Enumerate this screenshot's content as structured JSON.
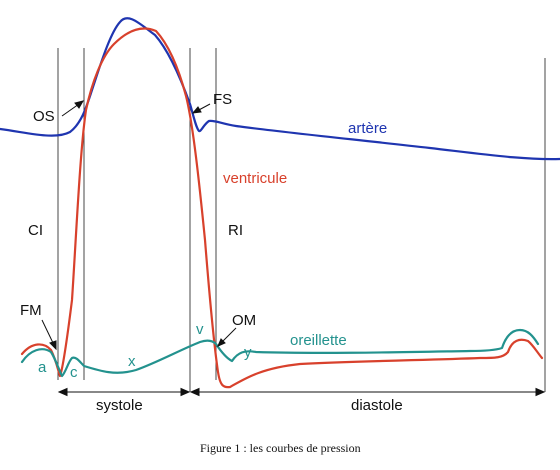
{
  "figure": {
    "caption": "Figure 1 : les courbes de pression",
    "colors": {
      "artery": "#1f35b0",
      "ventricle": "#d8412c",
      "atrium": "#23928e",
      "lines": "#222222"
    },
    "curves": {
      "artery": "artère",
      "ventricle": "ventricule",
      "atrium": "oreillette"
    },
    "events": {
      "aortic_opening": "OS",
      "aortic_closure": "FS",
      "mitral_closure": "FM",
      "mitral_opening": "OM",
      "isovolumic_contraction": "CI",
      "isovolumic_relaxation": "RI"
    },
    "atrial_waves": {
      "a": "a",
      "c": "c",
      "x": "x",
      "v": "v",
      "y": "y"
    },
    "phases": {
      "systole": "systole",
      "diastole": "diastole"
    }
  }
}
